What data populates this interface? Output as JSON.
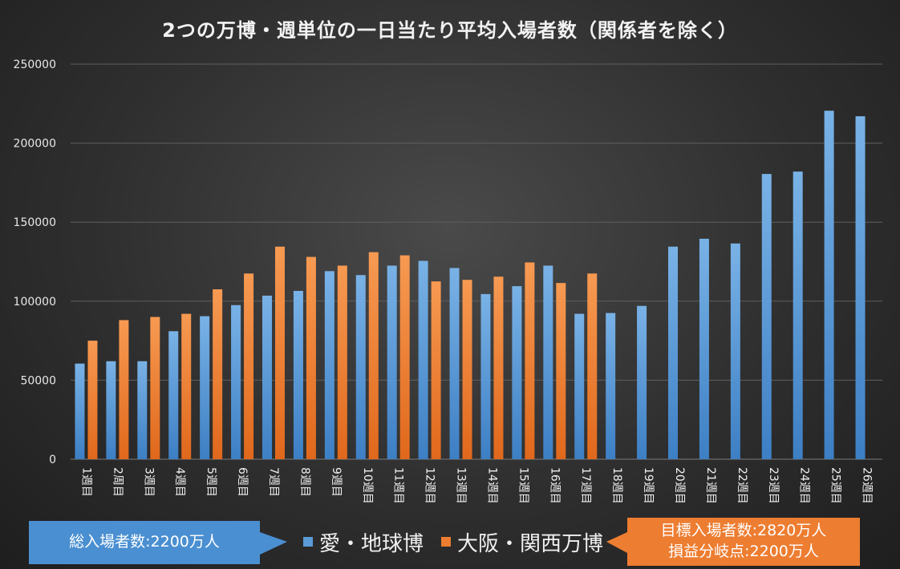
{
  "chart_data": {
    "type": "bar",
    "title": "2つの万博・週単位の一日当たり平均入場者数（関係者を除く）",
    "categories": [
      "1週目",
      "2周目",
      "3週目",
      "4週目",
      "5週目",
      "6週目",
      "7週目",
      "8週目",
      "9週目",
      "10週目",
      "11週目",
      "12週目",
      "13週目",
      "14週目",
      "15週目",
      "16週目",
      "17週目",
      "18週目",
      "19週目",
      "20週目",
      "21週目",
      "22週目",
      "23週目",
      "24週目",
      "25週目",
      "26週目"
    ],
    "series": [
      {
        "name": "愛・地球博",
        "color": "#5b9bd5",
        "values": [
          60500,
          62000,
          62000,
          81000,
          90500,
          97500,
          103500,
          106500,
          119000,
          116500,
          122500,
          125500,
          121000,
          104500,
          109500,
          122500,
          92000,
          92500,
          97000,
          134500,
          139500,
          136500,
          180500,
          182000,
          220500,
          217000
        ]
      },
      {
        "name": "大阪・関西万博",
        "color": "#ed7d31",
        "values": [
          75000,
          88000,
          90000,
          92000,
          107500,
          117500,
          134500,
          128000,
          122500,
          131000,
          129000,
          112500,
          113500,
          115500,
          124500,
          111500,
          117500,
          null,
          null,
          null,
          null,
          null,
          null,
          null,
          null,
          null
        ]
      }
    ],
    "yticks": [
      0,
      50000,
      100000,
      150000,
      200000,
      250000
    ],
    "ylim": [
      0,
      250000
    ],
    "grid": true,
    "legend": "bottom-center"
  },
  "annotations": {
    "left": "総入場者数:2200万人",
    "right_line1": "目標入場者数:2820万人",
    "right_line2": "損益分岐点:2200万人"
  }
}
